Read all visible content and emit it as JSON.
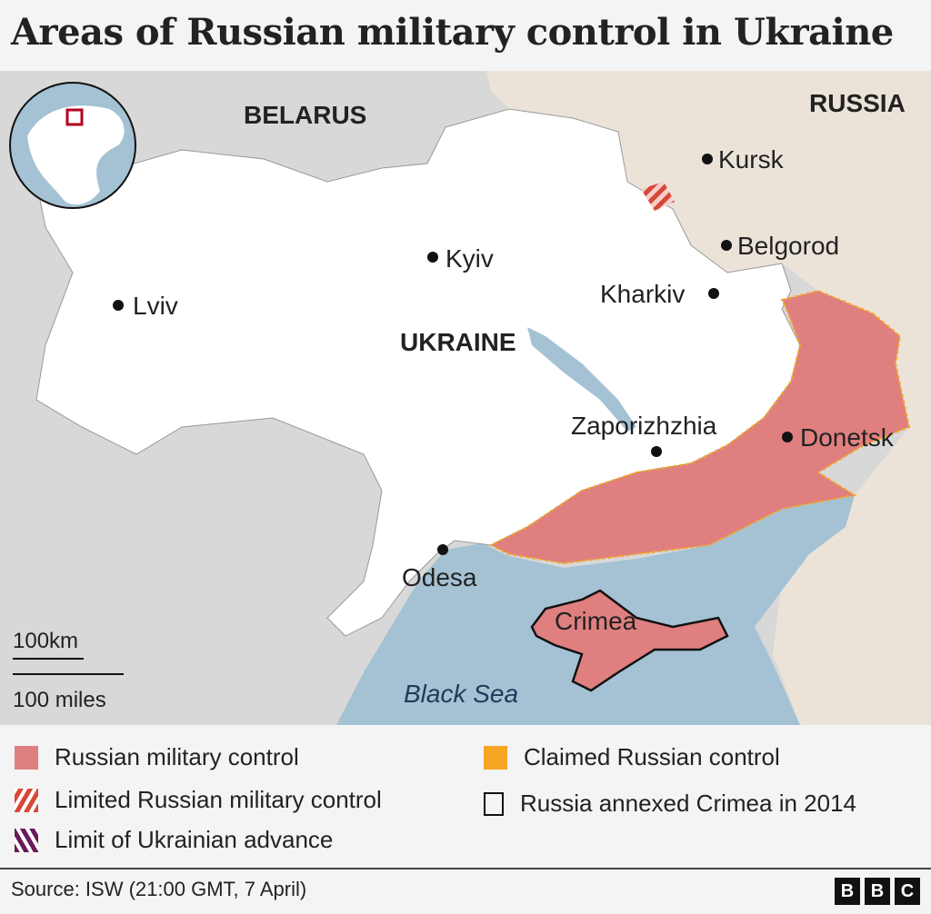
{
  "title": "Areas of Russian military control in Ukraine",
  "map": {
    "countries": [
      "BELARUS",
      "RUSSIA",
      "UKRAINE"
    ],
    "cities": [
      "Kursk",
      "Belgorod",
      "Kyiv",
      "Kharkiv",
      "Lviv",
      "Zaporizhzhia",
      "Donetsk",
      "Odesa"
    ],
    "region_label": "Crimea",
    "sea_label": "Black Sea",
    "scale": {
      "km": "100km",
      "miles": "100 miles"
    },
    "colors": {
      "russian_control": "#e07f7f",
      "claimed": "#f5a623",
      "sea": "#a4c2d4",
      "ukraine": "#ffffff",
      "russia_land": "#ece3d8",
      "other_land": "#d8d8d8",
      "locator_box": "#b3001b"
    }
  },
  "legend": [
    {
      "label": "Russian military control",
      "type": "solid",
      "color": "#e07f7f"
    },
    {
      "label": "Limited Russian military control",
      "type": "hatch",
      "color": "#d9463a"
    },
    {
      "label": "Limit of Ukrainian advance",
      "type": "hatch",
      "color": "#6b1a5a"
    },
    {
      "label": "Claimed Russian control",
      "type": "solid",
      "color": "#f5a623"
    },
    {
      "label": "Russia annexed Crimea in 2014",
      "type": "outline",
      "color": "#111111"
    }
  ],
  "source": "Source: ISW (21:00 GMT, 7 April)",
  "logo": [
    "B",
    "B",
    "C"
  ]
}
